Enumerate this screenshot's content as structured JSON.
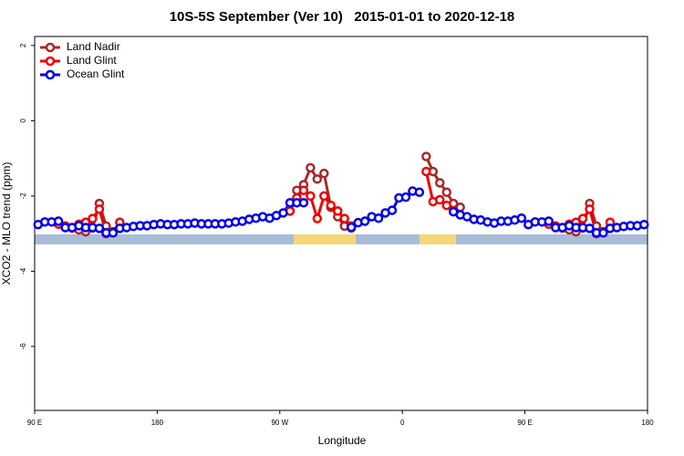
{
  "chart_data": {
    "type": "line",
    "title": "10S-5S September (Ver 10)   2015-01-01 to 2020-12-18",
    "x_label": "Longitude",
    "y_label": "XCO2 - MLO trend (ppm)",
    "xlim": [
      90,
      540
    ],
    "ylim": [
      -7.7,
      2.24
    ],
    "xticks": [
      {
        "value": 90,
        "label": "90 E"
      },
      {
        "value": 180,
        "label": "180"
      },
      {
        "value": 270,
        "label": "90 W"
      },
      {
        "value": 360,
        "label": "0"
      },
      {
        "value": 450,
        "label": "90 E"
      },
      {
        "value": 540,
        "label": "180"
      }
    ],
    "yticks": [
      2,
      0,
      -2,
      -4,
      -6
    ],
    "legend": "top-left",
    "x": [
      92.5,
      97.5,
      102.5,
      107.5,
      112.5,
      117.5,
      122.5,
      127.5,
      132.5,
      137.5,
      142.5,
      147.5,
      152.5,
      157.5,
      162.5,
      167.5,
      172.5,
      177.5,
      182.5,
      187.5,
      192.5,
      197.5,
      202.5,
      207.5,
      212.5,
      217.5,
      222.5,
      227.5,
      232.5,
      237.5,
      242.5,
      247.5,
      252.5,
      257.5,
      262.5,
      267.5,
      272.5,
      277.5,
      282.5,
      287.5,
      292.5,
      297.5,
      302.5,
      307.5,
      312.5,
      317.5,
      322.5,
      327.5,
      332.5,
      337.5,
      342.5,
      347.5,
      352.5,
      357.5,
      362.5,
      367.5,
      372.5,
      377.5,
      382.5,
      387.5,
      392.5,
      397.5,
      402.5,
      407.5,
      412.5,
      417.5,
      422.5,
      427.5,
      432.5,
      437.5,
      442.5,
      447.5,
      452.5,
      457.5,
      462.5,
      467.5,
      472.5,
      477.5,
      482.5,
      487.5,
      492.5,
      497.5,
      502.5,
      507.5,
      512.5,
      517.5,
      522.5,
      527.5,
      532.5,
      537.5
    ],
    "series": [
      {
        "name": "Land Nadir",
        "color": "#a52a2a",
        "values": [
          null,
          null,
          null,
          -2.7,
          -2.8,
          -2.85,
          -2.9,
          -2.95,
          -2.85,
          -2.2,
          -2.8,
          -2.95,
          null,
          null,
          null,
          null,
          null,
          null,
          null,
          null,
          null,
          null,
          null,
          null,
          null,
          null,
          null,
          null,
          null,
          null,
          null,
          null,
          null,
          null,
          null,
          null,
          null,
          -2.4,
          -1.85,
          -1.7,
          -1.25,
          -1.55,
          -1.4,
          -2.3,
          -2.55,
          -2.8,
          -2.85,
          null,
          null,
          null,
          null,
          null,
          null,
          null,
          null,
          null,
          null,
          -0.95,
          -1.35,
          -1.65,
          -1.9,
          -2.2,
          -2.3,
          null,
          null,
          null,
          null,
          null,
          null,
          null,
          null,
          null,
          null,
          null,
          null,
          -2.7,
          -2.8,
          -2.85,
          -2.9,
          -2.95,
          -2.85,
          -2.2,
          -2.8,
          -2.95,
          null,
          null,
          null,
          null,
          null,
          null
        ]
      },
      {
        "name": "Land Glint",
        "color": "#ee0000",
        "values": [
          null,
          null,
          null,
          -2.75,
          -2.8,
          -2.85,
          -2.75,
          -2.7,
          -2.6,
          -2.35,
          -3.0,
          -2.95,
          -2.7,
          null,
          null,
          null,
          null,
          null,
          null,
          null,
          null,
          null,
          null,
          null,
          null,
          null,
          null,
          null,
          null,
          null,
          null,
          null,
          null,
          null,
          null,
          null,
          null,
          -2.4,
          -2.05,
          -1.85,
          -2.0,
          -2.6,
          -2.0,
          -2.25,
          -2.4,
          -2.6,
          -2.8,
          null,
          null,
          null,
          null,
          null,
          null,
          null,
          null,
          null,
          null,
          -1.35,
          -2.15,
          -2.1,
          -2.25,
          -2.4,
          null,
          null,
          null,
          null,
          null,
          null,
          null,
          null,
          null,
          null,
          null,
          null,
          null,
          -2.75,
          -2.8,
          -2.85,
          -2.75,
          -2.7,
          -2.6,
          -2.35,
          -3.0,
          -2.95,
          -2.7,
          null,
          null,
          null,
          null,
          null
        ]
      },
      {
        "name": "Ocean Glint",
        "color": "#0000ee",
        "values": [
          -2.76,
          -2.69,
          -2.69,
          -2.67,
          -2.84,
          -2.84,
          -2.79,
          -2.84,
          -2.84,
          -2.86,
          -2.98,
          -2.98,
          -2.86,
          -2.84,
          -2.81,
          -2.79,
          -2.79,
          -2.76,
          -2.74,
          -2.76,
          -2.76,
          -2.74,
          -2.74,
          -2.72,
          -2.74,
          -2.74,
          -2.74,
          -2.74,
          -2.72,
          -2.69,
          -2.67,
          -2.62,
          -2.59,
          -2.55,
          -2.59,
          -2.52,
          -2.45,
          -2.18,
          -2.18,
          -2.18,
          null,
          null,
          null,
          null,
          null,
          null,
          -2.83,
          -2.71,
          -2.67,
          -2.55,
          -2.59,
          -2.45,
          -2.38,
          -2.05,
          -2.03,
          -1.87,
          -1.9,
          null,
          null,
          null,
          null,
          -2.42,
          -2.5,
          -2.55,
          -2.62,
          -2.64,
          -2.69,
          -2.72,
          -2.67,
          -2.67,
          -2.64,
          -2.59,
          -2.76,
          -2.69,
          -2.69,
          -2.67,
          -2.84,
          -2.84,
          -2.79,
          -2.84,
          -2.84,
          -2.86,
          -2.98,
          -2.98,
          -2.86,
          -2.84,
          -2.81,
          -2.79,
          -2.79,
          -2.76
        ]
      }
    ]
  }
}
